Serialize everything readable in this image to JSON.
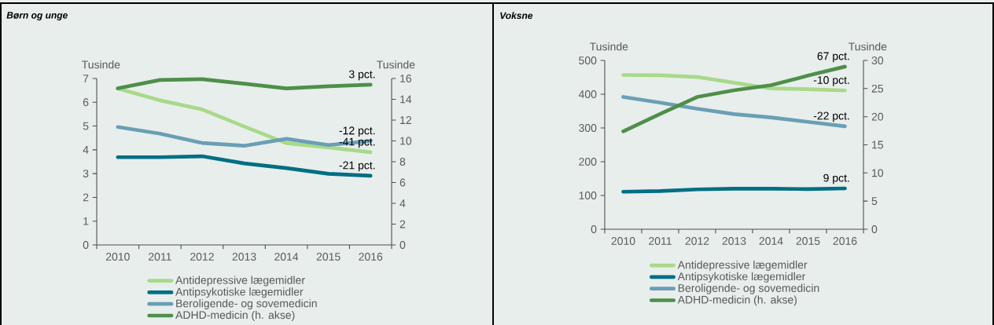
{
  "chart_data": [
    {
      "type": "line",
      "title": "Børn og unge",
      "ylabel": "Tusinde",
      "y2label": "Tusinde",
      "legend": "bottom",
      "categories": [
        "2010",
        "2011",
        "2012",
        "2013",
        "2014",
        "2015",
        "2016"
      ],
      "ylim": [
        0,
        7
      ],
      "yticks": [
        0,
        1,
        2,
        3,
        4,
        5,
        6,
        7
      ],
      "y2lim": [
        0,
        16
      ],
      "y2ticks": [
        0,
        2,
        4,
        6,
        8,
        10,
        12,
        14,
        16
      ],
      "series": [
        {
          "name": "Antidepressive lægemidler",
          "color": "#a9d98a",
          "values": [
            6.58,
            6.08,
            5.7,
            4.98,
            4.28,
            4.1,
            3.9
          ]
        },
        {
          "name": "Antipsykotiske lægemidler",
          "color": "#006e85",
          "values": [
            3.69,
            3.69,
            3.73,
            3.43,
            3.23,
            2.99,
            2.91
          ]
        },
        {
          "name": "Beroligende- og sovemedicin",
          "color": "#6a9fb5",
          "values": [
            4.96,
            4.68,
            4.29,
            4.17,
            4.46,
            4.2,
            4.37
          ]
        },
        {
          "name": "ADHD-medicin (h. akse)",
          "color": "#4e8f4a",
          "axis": "y2",
          "values": [
            15.05,
            15.86,
            15.93,
            15.5,
            15.05,
            15.25,
            15.4
          ]
        }
      ],
      "annotations": [
        {
          "text": "3 pct.",
          "x": "2016",
          "y": 6.74
        },
        {
          "text": "-12 pct.",
          "x": "2016",
          "y": 4.37
        },
        {
          "text": "-41 pct.",
          "x": "2016",
          "y": 3.9
        },
        {
          "text": "-21 pct.",
          "x": "2016",
          "y": 2.91
        }
      ]
    },
    {
      "type": "line",
      "title": "Voksne",
      "ylabel": "Tusinde",
      "y2label": "Tusinde",
      "legend": "bottom",
      "categories": [
        "2010",
        "2011",
        "2012",
        "2013",
        "2014",
        "2015",
        "2016"
      ],
      "ylim": [
        0,
        500
      ],
      "yticks": [
        0,
        100,
        200,
        300,
        400,
        500
      ],
      "y2lim": [
        0,
        30
      ],
      "y2ticks": [
        0,
        5,
        10,
        15,
        20,
        25,
        30
      ],
      "series": [
        {
          "name": "Antidepressive lægemidler",
          "color": "#a9d98a",
          "values": [
            457,
            456,
            451,
            434,
            417,
            415,
            411
          ]
        },
        {
          "name": "Antipsykotiske lægemidler",
          "color": "#006e85",
          "values": [
            111,
            113,
            118,
            120,
            120,
            119,
            121
          ]
        },
        {
          "name": "Beroligende- og sovemedicin",
          "color": "#6a9fb5",
          "values": [
            392,
            375,
            357,
            341,
            331,
            318,
            305
          ]
        },
        {
          "name": "ADHD-medicin (h. akse)",
          "color": "#4e8f4a",
          "axis": "y2",
          "values": [
            17.4,
            20.5,
            23.5,
            24.7,
            25.6,
            27.3,
            28.9
          ]
        }
      ],
      "annotations": [
        {
          "text": "67 pct.",
          "x": "2016",
          "y": 482
        },
        {
          "text": "-10 pct.",
          "x": "2016",
          "y": 411
        },
        {
          "text": "-22 pct.",
          "x": "2016",
          "y": 305
        },
        {
          "text": "9 pct.",
          "x": "2016",
          "y": 121
        }
      ]
    }
  ]
}
